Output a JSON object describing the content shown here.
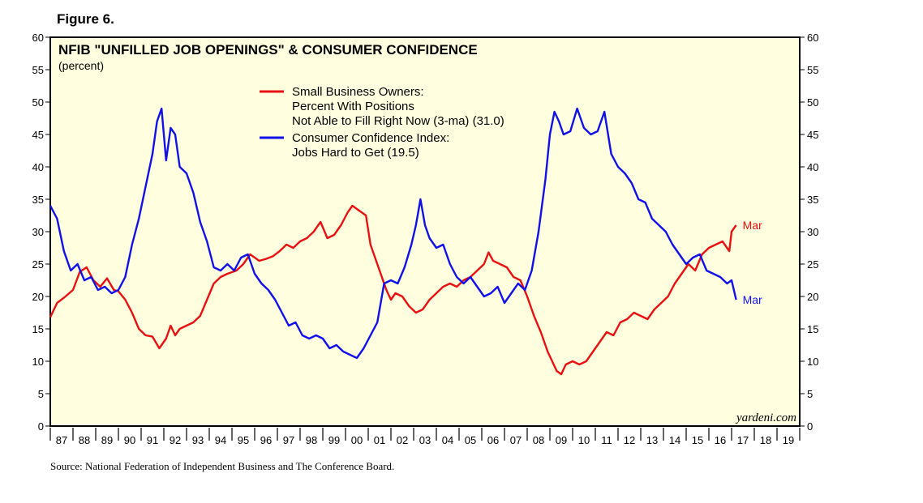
{
  "figure_label": "Figure 6.",
  "source": "Source: National Federation of Independent Business and The Conference Board.",
  "watermark": "yardeni.com",
  "chart_data": {
    "type": "line",
    "title": "NFIB \"UNFILLED JOB OPENINGS\" & CONSUMER CONFIDENCE",
    "subtitle": "(percent)",
    "xlabel": "",
    "ylabel": "",
    "xlim": [
      1987.0,
      2020.0
    ],
    "ylim": [
      0,
      60
    ],
    "y_ticks": [
      0,
      5,
      10,
      15,
      20,
      25,
      30,
      35,
      40,
      45,
      50,
      55,
      60
    ],
    "x_tick_labels": [
      "87",
      "88",
      "89",
      "90",
      "91",
      "92",
      "93",
      "94",
      "95",
      "96",
      "97",
      "98",
      "99",
      "00",
      "01",
      "02",
      "03",
      "04",
      "05",
      "06",
      "07",
      "08",
      "09",
      "10",
      "11",
      "12",
      "13",
      "14",
      "15",
      "16",
      "17",
      "18",
      "19"
    ],
    "grid": false,
    "legend_position": "top-center",
    "series": [
      {
        "name": "Small Business Owners: Percent With Positions Not Able to Fill Right Now (3-ma) (31.0)",
        "legend_lines": [
          "Small Business Owners:",
          "Percent With Positions",
          "Not Able to Fill Right Now (3-ma) (31.0)"
        ],
        "color": "#e81010",
        "end_label": "Mar",
        "x": [
          1987.0,
          1987.3,
          1987.6,
          1988.0,
          1988.3,
          1988.6,
          1988.9,
          1989.2,
          1989.5,
          1989.8,
          1990.0,
          1990.3,
          1990.6,
          1990.9,
          1991.2,
          1991.5,
          1991.8,
          1992.1,
          1992.3,
          1992.5,
          1992.7,
          1993.0,
          1993.3,
          1993.6,
          1993.9,
          1994.2,
          1994.5,
          1994.8,
          1995.2,
          1995.5,
          1995.8,
          1996.2,
          1996.5,
          1996.8,
          1997.1,
          1997.4,
          1997.7,
          1998.0,
          1998.3,
          1998.6,
          1998.9,
          1999.2,
          1999.5,
          1999.8,
          2000.1,
          2000.3,
          2000.5,
          2000.7,
          2000.9,
          2001.1,
          2001.3,
          2001.5,
          2001.8,
          2002.0,
          2002.2,
          2002.5,
          2002.8,
          2003.1,
          2003.4,
          2003.7,
          2004.0,
          2004.3,
          2004.6,
          2004.9,
          2005.2,
          2005.5,
          2005.8,
          2006.1,
          2006.3,
          2006.5,
          2006.8,
          2007.1,
          2007.4,
          2007.7,
          2008.0,
          2008.3,
          2008.6,
          2008.9,
          2009.1,
          2009.3,
          2009.5,
          2009.7,
          2010.0,
          2010.3,
          2010.6,
          2010.9,
          2011.2,
          2011.5,
          2011.8,
          2012.1,
          2012.4,
          2012.7,
          2013.0,
          2013.3,
          2013.6,
          2013.9,
          2014.2,
          2014.5,
          2014.8,
          2015.1,
          2015.4,
          2015.7,
          2016.0,
          2016.3,
          2016.6,
          2016.9,
          2017.0,
          2017.2
        ],
        "y": [
          16.8,
          19.0,
          19.8,
          21.0,
          23.8,
          24.5,
          22.5,
          21.5,
          22.8,
          21.0,
          20.8,
          19.5,
          17.5,
          15.0,
          14.0,
          13.8,
          12.0,
          13.5,
          15.5,
          14.0,
          15.0,
          15.5,
          16.0,
          17.0,
          19.5,
          22.0,
          23.0,
          23.5,
          24.0,
          25.0,
          26.5,
          25.5,
          25.8,
          26.2,
          27.0,
          28.0,
          27.5,
          28.5,
          29.0,
          30.0,
          31.5,
          29.0,
          29.5,
          31.0,
          33.0,
          34.0,
          33.5,
          33.0,
          32.5,
          28.0,
          26.0,
          24.0,
          21.0,
          19.5,
          20.5,
          20.0,
          18.5,
          17.5,
          18.0,
          19.5,
          20.5,
          21.5,
          22.0,
          21.5,
          22.5,
          23.0,
          24.0,
          25.0,
          26.8,
          25.5,
          25.0,
          24.5,
          23.0,
          22.5,
          20.0,
          17.0,
          14.5,
          11.5,
          10.0,
          8.5,
          8.0,
          9.5,
          10.0,
          9.5,
          10.0,
          11.5,
          13.0,
          14.5,
          14.0,
          16.0,
          16.5,
          17.5,
          17.0,
          16.5,
          18.0,
          19.0,
          20.0,
          22.0,
          23.5,
          25.0,
          24.0,
          26.5,
          27.5,
          28.0,
          28.5,
          27.0,
          30.0,
          31.0
        ]
      },
      {
        "name": "Consumer Confidence Index: Jobs Hard to Get (19.5)",
        "legend_lines": [
          "Consumer Confidence Index:",
          "Jobs Hard to Get (19.5)"
        ],
        "color": "#1010e8",
        "end_label": "Mar",
        "x": [
          1987.0,
          1987.3,
          1987.6,
          1987.9,
          1988.2,
          1988.5,
          1988.8,
          1989.1,
          1989.4,
          1989.7,
          1990.0,
          1990.3,
          1990.6,
          1990.9,
          1991.2,
          1991.5,
          1991.7,
          1991.9,
          1992.1,
          1992.3,
          1992.5,
          1992.7,
          1993.0,
          1993.3,
          1993.6,
          1993.9,
          1994.2,
          1994.5,
          1994.8,
          1995.1,
          1995.4,
          1995.7,
          1996.0,
          1996.3,
          1996.6,
          1996.9,
          1997.2,
          1997.5,
          1997.8,
          1998.1,
          1998.4,
          1998.7,
          1999.0,
          1999.3,
          1999.6,
          1999.9,
          2000.2,
          2000.5,
          2000.8,
          2001.1,
          2001.4,
          2001.7,
          2002.0,
          2002.3,
          2002.6,
          2002.9,
          2003.1,
          2003.3,
          2003.5,
          2003.7,
          2004.0,
          2004.3,
          2004.6,
          2004.9,
          2005.2,
          2005.5,
          2005.8,
          2006.1,
          2006.4,
          2006.7,
          2007.0,
          2007.3,
          2007.6,
          2007.9,
          2008.2,
          2008.5,
          2008.8,
          2009.0,
          2009.2,
          2009.4,
          2009.6,
          2009.9,
          2010.2,
          2010.5,
          2010.8,
          2011.1,
          2011.4,
          2011.7,
          2012.0,
          2012.3,
          2012.6,
          2012.9,
          2013.2,
          2013.5,
          2013.8,
          2014.1,
          2014.4,
          2014.7,
          2015.0,
          2015.3,
          2015.6,
          2015.9,
          2016.2,
          2016.5,
          2016.8,
          2017.0,
          2017.2
        ],
        "y": [
          34.0,
          32.0,
          27.0,
          24.0,
          25.0,
          22.5,
          23.0,
          21.0,
          21.5,
          20.5,
          21.0,
          23.0,
          28.0,
          32.0,
          37.0,
          42.0,
          47.0,
          49.0,
          41.0,
          46.0,
          45.0,
          40.0,
          39.0,
          36.0,
          31.5,
          28.5,
          24.5,
          24.0,
          25.0,
          24.0,
          26.0,
          26.5,
          23.5,
          22.0,
          21.0,
          19.5,
          17.5,
          15.5,
          16.0,
          14.0,
          13.5,
          14.0,
          13.5,
          12.0,
          12.5,
          11.5,
          11.0,
          10.5,
          12.0,
          14.0,
          16.0,
          22.0,
          22.5,
          22.0,
          24.5,
          28.0,
          31.0,
          35.0,
          31.0,
          29.0,
          27.5,
          28.0,
          25.0,
          23.0,
          22.0,
          23.0,
          21.5,
          20.0,
          20.5,
          21.5,
          19.0,
          20.5,
          22.0,
          21.0,
          24.0,
          30.0,
          38.0,
          45.0,
          48.5,
          47.0,
          45.0,
          45.5,
          49.0,
          46.0,
          45.0,
          45.5,
          48.5,
          42.0,
          40.0,
          39.0,
          37.5,
          35.0,
          34.5,
          32.0,
          31.0,
          30.0,
          28.0,
          26.5,
          25.0,
          26.0,
          26.5,
          24.0,
          23.5,
          23.0,
          22.0,
          22.5,
          19.5
        ]
      }
    ]
  }
}
